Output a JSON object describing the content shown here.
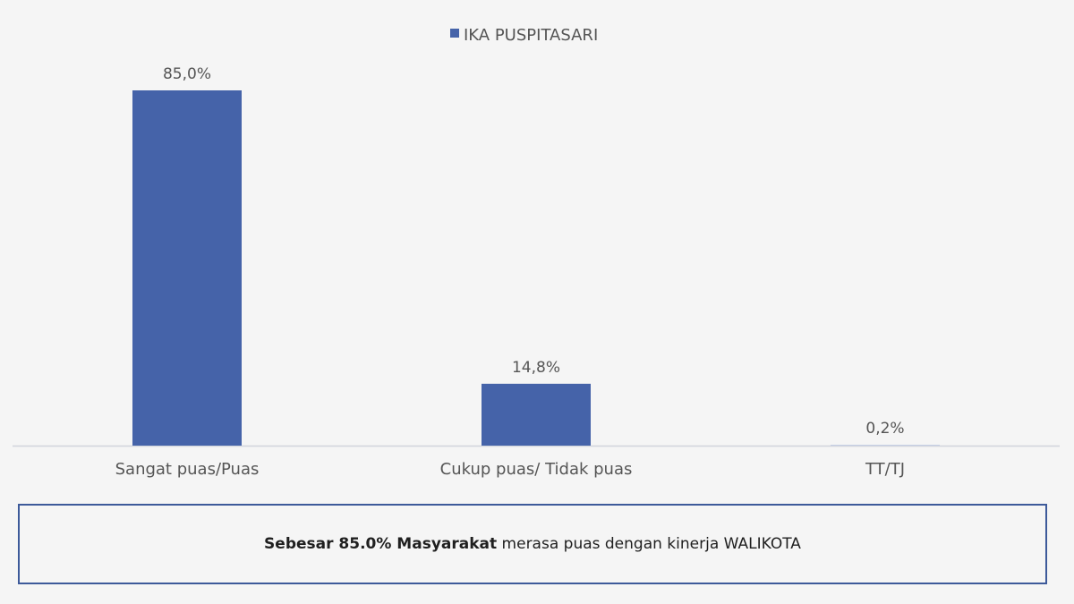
{
  "chart_data": {
    "type": "bar",
    "categories": [
      "Sangat puas/Puas",
      "Cukup puas/ Tidak puas",
      "TT/TJ"
    ],
    "series": [
      {
        "name": "IKA PUSPITASARI",
        "values": [
          85.0,
          14.8,
          0.2
        ],
        "labels": [
          "85,0%",
          "14,8%",
          "0,2%"
        ]
      }
    ],
    "ylim": [
      0,
      85
    ],
    "grid": false,
    "legend_position": "top-center",
    "bar_color": "#4563a9",
    "highlight_label_color": "#d9261c",
    "label_color": "#555555"
  },
  "note": {
    "bold_text": "Sebesar 85.0% Masyarakat",
    "rest_text": "merasa puas dengan kinerja WALIKOTA"
  },
  "colors": {
    "background": "#f5f5f5",
    "axis": "#d0d4dc",
    "box_border": "#3d5a9a"
  }
}
